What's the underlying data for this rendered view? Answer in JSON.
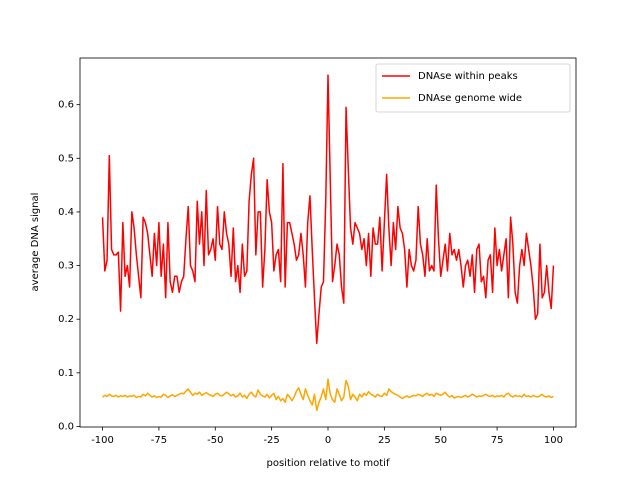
{
  "chart_data": {
    "type": "line",
    "xlabel": "position relative to motif",
    "ylabel": "average DNA signal",
    "legend": "upper right",
    "xlim": [
      -110,
      110
    ],
    "ylim": [
      -0.001,
      0.687
    ],
    "xticks": [
      -100,
      -75,
      -50,
      -25,
      0,
      25,
      50,
      75,
      100
    ],
    "yticks": [
      {
        "value": 0,
        "label": "0.0"
      },
      0.1,
      0.2,
      0.3,
      0.4,
      0.5,
      0.6
    ],
    "x": [
      -100,
      -99,
      -98,
      -97,
      -96,
      -95,
      -94,
      -93,
      -92,
      -91,
      -90,
      -89,
      -88,
      -87,
      -86,
      -85,
      -84,
      -83,
      -82,
      -81,
      -80,
      -79,
      -78,
      -77,
      -76,
      -75,
      -74,
      -73,
      -72,
      -71,
      -70,
      -69,
      -68,
      -67,
      -66,
      -65,
      -64,
      -63,
      -62,
      -61,
      -60,
      -59,
      -58,
      -57,
      -56,
      -55,
      -54,
      -53,
      -52,
      -51,
      -50,
      -49,
      -48,
      -47,
      -46,
      -45,
      -44,
      -43,
      -42,
      -41,
      -40,
      -39,
      -38,
      -37,
      -36,
      -35,
      -34,
      -33,
      -32,
      -31,
      -30,
      -29,
      -28,
      -27,
      -26,
      -25,
      -24,
      -23,
      -22,
      -21,
      -20,
      -19,
      -18,
      -17,
      -16,
      -15,
      -14,
      -13,
      -12,
      -11,
      -10,
      -9,
      -8,
      -7,
      -6,
      -5,
      -4,
      -3,
      -2,
      -1,
      0,
      1,
      2,
      3,
      4,
      5,
      6,
      7,
      8,
      9,
      10,
      11,
      12,
      13,
      14,
      15,
      16,
      17,
      18,
      19,
      20,
      21,
      22,
      23,
      24,
      25,
      26,
      27,
      28,
      29,
      30,
      31,
      32,
      33,
      34,
      35,
      36,
      37,
      38,
      39,
      40,
      41,
      42,
      43,
      44,
      45,
      46,
      47,
      48,
      49,
      50,
      51,
      52,
      53,
      54,
      55,
      56,
      57,
      58,
      59,
      60,
      61,
      62,
      63,
      64,
      65,
      66,
      67,
      68,
      69,
      70,
      71,
      72,
      73,
      74,
      75,
      76,
      77,
      78,
      79,
      80,
      81,
      82,
      83,
      84,
      85,
      86,
      87,
      88,
      89,
      90,
      91,
      92,
      93,
      94,
      95,
      96,
      97,
      98,
      99,
      100
    ],
    "series": [
      {
        "name": "DNAse within peaks",
        "color": "#ff0000",
        "values": [
          0.39,
          0.29,
          0.31,
          0.505,
          0.33,
          0.32,
          0.32,
          0.325,
          0.215,
          0.38,
          0.28,
          0.3,
          0.26,
          0.4,
          0.37,
          0.32,
          0.28,
          0.24,
          0.39,
          0.38,
          0.36,
          0.32,
          0.28,
          0.36,
          0.3,
          0.38,
          0.28,
          0.34,
          0.24,
          0.38,
          0.27,
          0.25,
          0.28,
          0.28,
          0.25,
          0.27,
          0.28,
          0.35,
          0.41,
          0.3,
          0.29,
          0.27,
          0.42,
          0.34,
          0.4,
          0.3,
          0.44,
          0.32,
          0.33,
          0.35,
          0.31,
          0.41,
          0.34,
          0.33,
          0.4,
          0.36,
          0.34,
          0.28,
          0.37,
          0.27,
          0.3,
          0.25,
          0.34,
          0.28,
          0.29,
          0.42,
          0.47,
          0.5,
          0.32,
          0.4,
          0.4,
          0.26,
          0.33,
          0.46,
          0.4,
          0.38,
          0.29,
          0.32,
          0.33,
          0.27,
          0.49,
          0.26,
          0.38,
          0.38,
          0.36,
          0.34,
          0.31,
          0.32,
          0.36,
          0.32,
          0.26,
          0.38,
          0.43,
          0.33,
          0.24,
          0.155,
          0.21,
          0.26,
          0.27,
          0.42,
          0.655,
          0.46,
          0.27,
          0.3,
          0.34,
          0.32,
          0.26,
          0.23,
          0.595,
          0.48,
          0.37,
          0.34,
          0.38,
          0.37,
          0.36,
          0.33,
          0.35,
          0.3,
          0.36,
          0.28,
          0.37,
          0.34,
          0.34,
          0.39,
          0.29,
          0.38,
          0.47,
          0.37,
          0.3,
          0.38,
          0.33,
          0.41,
          0.37,
          0.36,
          0.33,
          0.26,
          0.33,
          0.3,
          0.29,
          0.31,
          0.41,
          0.34,
          0.32,
          0.28,
          0.35,
          0.29,
          0.3,
          0.29,
          0.45,
          0.35,
          0.28,
          0.31,
          0.34,
          0.29,
          0.36,
          0.32,
          0.33,
          0.31,
          0.33,
          0.3,
          0.26,
          0.3,
          0.31,
          0.28,
          0.32,
          0.25,
          0.33,
          0.34,
          0.27,
          0.28,
          0.24,
          0.31,
          0.32,
          0.25,
          0.37,
          0.3,
          0.33,
          0.29,
          0.32,
          0.35,
          0.24,
          0.39,
          0.34,
          0.25,
          0.23,
          0.3,
          0.33,
          0.3,
          0.36,
          0.33,
          0.3,
          0.26,
          0.2,
          0.21,
          0.34,
          0.24,
          0.25,
          0.3,
          0.25,
          0.22,
          0.3
        ]
      },
      {
        "name": "DNAse genome wide",
        "color": "#ffa500",
        "values": [
          0.055,
          0.058,
          0.056,
          0.06,
          0.057,
          0.056,
          0.058,
          0.055,
          0.057,
          0.056,
          0.058,
          0.055,
          0.057,
          0.056,
          0.058,
          0.054,
          0.056,
          0.055,
          0.06,
          0.057,
          0.062,
          0.058,
          0.055,
          0.057,
          0.054,
          0.056,
          0.055,
          0.06,
          0.058,
          0.054,
          0.057,
          0.059,
          0.056,
          0.058,
          0.06,
          0.062,
          0.061,
          0.066,
          0.07,
          0.064,
          0.058,
          0.062,
          0.06,
          0.064,
          0.058,
          0.061,
          0.063,
          0.06,
          0.058,
          0.056,
          0.06,
          0.062,
          0.058,
          0.057,
          0.06,
          0.064,
          0.061,
          0.057,
          0.06,
          0.055,
          0.057,
          0.062,
          0.055,
          0.058,
          0.052,
          0.06,
          0.064,
          0.058,
          0.055,
          0.068,
          0.06,
          0.057,
          0.055,
          0.06,
          0.053,
          0.058,
          0.062,
          0.05,
          0.056,
          0.048,
          0.052,
          0.045,
          0.06,
          0.055,
          0.048,
          0.055,
          0.066,
          0.072,
          0.06,
          0.05,
          0.07,
          0.058,
          0.048,
          0.04,
          0.06,
          0.03,
          0.045,
          0.055,
          0.07,
          0.05,
          0.088,
          0.06,
          0.05,
          0.045,
          0.07,
          0.06,
          0.048,
          0.055,
          0.086,
          0.075,
          0.05,
          0.06,
          0.055,
          0.048,
          0.06,
          0.055,
          0.062,
          0.058,
          0.065,
          0.06,
          0.058,
          0.055,
          0.06,
          0.057,
          0.056,
          0.062,
          0.058,
          0.07,
          0.065,
          0.062,
          0.06,
          0.058,
          0.055,
          0.052,
          0.055,
          0.057,
          0.054,
          0.056,
          0.058,
          0.057,
          0.06,
          0.058,
          0.056,
          0.06,
          0.062,
          0.058,
          0.06,
          0.056,
          0.062,
          0.06,
          0.058,
          0.06,
          0.064,
          0.058,
          0.055,
          0.058,
          0.053,
          0.055,
          0.056,
          0.054,
          0.056,
          0.058,
          0.055,
          0.057,
          0.06,
          0.058,
          0.055,
          0.057,
          0.056,
          0.058,
          0.06,
          0.057,
          0.056,
          0.058,
          0.055,
          0.057,
          0.056,
          0.058,
          0.055,
          0.06,
          0.062,
          0.057,
          0.055,
          0.058,
          0.056,
          0.057,
          0.055,
          0.06,
          0.056,
          0.057,
          0.055,
          0.058,
          0.056,
          0.055,
          0.057,
          0.06,
          0.056,
          0.055,
          0.057,
          0.054,
          0.056
        ]
      }
    ]
  }
}
